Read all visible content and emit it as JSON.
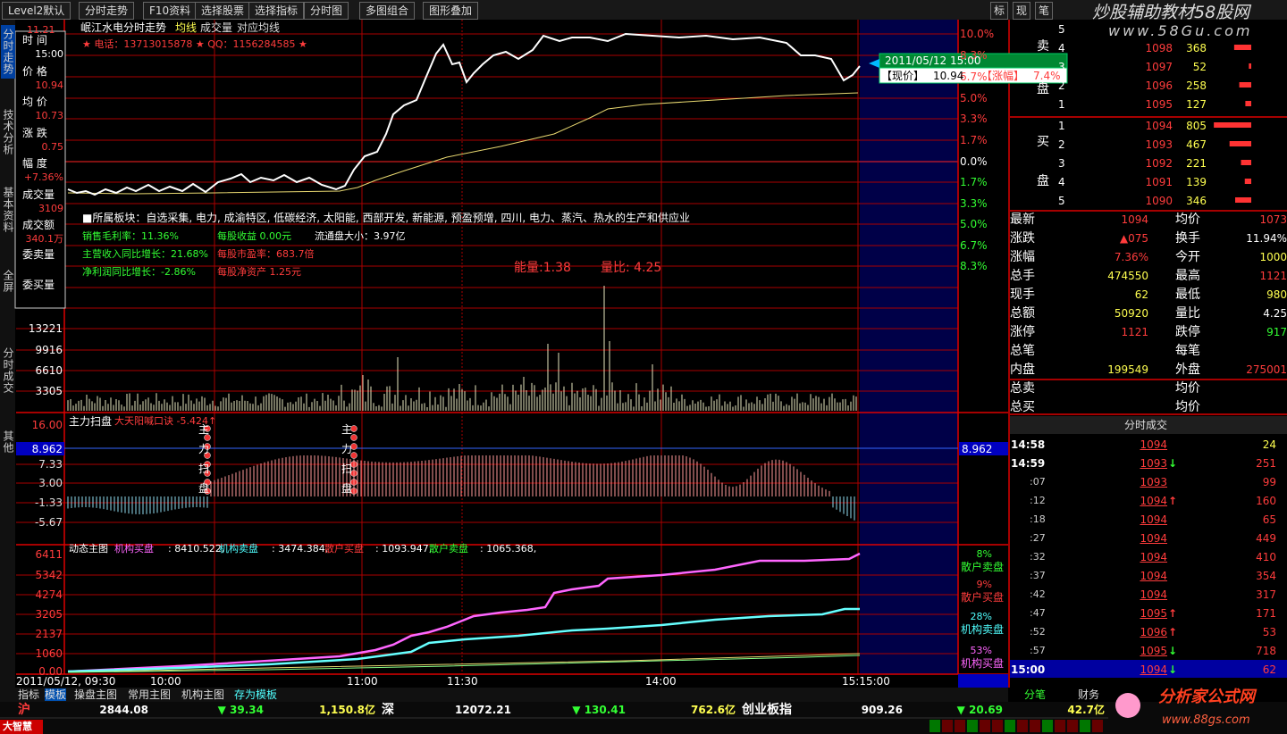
{
  "toolbar": {
    "tabs": [
      "Level2默认",
      "分时走势",
      "F10资料",
      "选择股票",
      "选择指标",
      "分时图",
      "多图组合",
      "图形叠加"
    ],
    "right": [
      "标",
      "现",
      "笔"
    ]
  },
  "logo_top": {
    "title": "炒股辅助教材58股网",
    "url": "www.58Gu.com"
  },
  "side_tabs": [
    "分时走势",
    "技术分析",
    "基本资料",
    "全屏",
    "分时成交",
    "其他"
  ],
  "info_box": [
    {
      "label": "时 间",
      "value": "15:00"
    },
    {
      "label": "价 格",
      "value": "10.94"
    },
    {
      "label": "均 价",
      "value": "10.73"
    },
    {
      "label": "涨 跌",
      "value": "0.75"
    },
    {
      "label": "幅 度",
      "value": "+7.36%"
    },
    {
      "label": "成交量",
      "value": "3109"
    },
    {
      "label": "成交额",
      "value": "340.1万"
    },
    {
      "label": "委卖量"
    },
    {
      "label": "委买量"
    }
  ],
  "chart": {
    "title": "岷江水电分时走势",
    "menu": [
      "均线",
      "成交量",
      "对应均线"
    ],
    "contact": "★ 电话：13713015878 ★ QQ：1156284585 ★",
    "top_price": "11.21",
    "pct_ticks": [
      "10.0%",
      "8.3%",
      "6.7%",
      "5.0%",
      "3.3%",
      "1.7%",
      "0.0%",
      "1.7%",
      "3.3%",
      "5.0%",
      "6.7%",
      "8.3%"
    ],
    "tooltip": {
      "date": "2011/05/12 15:00",
      "price_label": "【现价】",
      "price": "10.94",
      "change_label": "【涨幅】",
      "change": "7.4%"
    }
  },
  "fundamentals": {
    "sector": "■所属板块：自选采集, 电力, 成渝特区, 低碳经济, 太阳能, 西部开发, 新能源, 预盈预增, 四川, 电力、蒸汽、热水的生产和供应业",
    "items": [
      "销售毛利率：11.36%",
      "每股收益 0.00元",
      "流通盘大小：3.97亿",
      "主营收入同比增长：21.68%",
      "每股市盈率：683.7倍",
      "净利润同比增长：-2.86%",
      "每股净资产 1.25元"
    ],
    "energy": "能量:1.38",
    "volume_ratio": "量比: 4.25"
  },
  "volume_ticks": [
    "13221",
    "9916",
    "6610",
    "3305"
  ],
  "indicator": {
    "name": "主力扫盘",
    "formula": "大天阳喊口诀 -5.424↑",
    "ticks": [
      "16.00",
      "7.33",
      "3.00",
      "-1.33",
      "-5.67"
    ],
    "current": "8.962",
    "marker": [
      "主",
      "力",
      "扫",
      "盘"
    ]
  },
  "dynamic": {
    "name": "动态主图",
    "items": [
      {
        "name": "机构买盘",
        "value": ": 8410.522,"
      },
      {
        "name": "机构卖盘",
        "value": ": 3474.384,"
      },
      {
        "name": "散户买盘",
        "value": ": 1093.947,"
      },
      {
        "name": "散户卖盘",
        "value": ": 1065.368,"
      }
    ],
    "ticks": [
      "6411",
      "5342",
      "4274",
      "3205",
      "2137",
      "1060",
      "0.00"
    ],
    "shares": [
      {
        "pct": "8%",
        "name": "散户卖盘"
      },
      {
        "pct": "9%",
        "name": "散户买盘"
      },
      {
        "pct": "28%",
        "name": "机构卖盘"
      },
      {
        "pct": "53%",
        "name": "机构买盘"
      }
    ]
  },
  "x_axis": [
    "2011/05/12, 09:30",
    "10:00",
    "11:00",
    "11:30",
    "14:00",
    "15:15:00"
  ],
  "bottom_tabs": [
    "指标",
    "模板",
    "操盘主图",
    "常用主图",
    "机构主图",
    "存为模板"
  ],
  "right_tabs": [
    "分笔",
    "财务"
  ],
  "order_book": {
    "sell_label": [
      "卖",
      "盘"
    ],
    "buy_label": [
      "买",
      "盘"
    ],
    "sell": [
      {
        "level": "5"
      },
      {
        "level": "4",
        "price": "1098",
        "volume": "368"
      },
      {
        "level": "3",
        "price": "1097",
        "volume": "52"
      },
      {
        "level": "2",
        "price": "1096",
        "volume": "258"
      },
      {
        "level": "1",
        "price": "1095",
        "volume": "127"
      }
    ],
    "buy": [
      {
        "level": "1",
        "price": "1094",
        "volume": "805"
      },
      {
        "level": "2",
        "price": "1093",
        "volume": "467"
      },
      {
        "level": "3",
        "price": "1092",
        "volume": "221"
      },
      {
        "level": "4",
        "price": "1091",
        "volume": "139"
      },
      {
        "level": "5",
        "price": "1090",
        "volume": "346"
      }
    ]
  },
  "stats": [
    {
      "l1": "最新",
      "v1": "1094",
      "l2": "均价",
      "v2": "1073"
    },
    {
      "l1": "涨跌",
      "v1": "▲075",
      "l2": "换手",
      "v2": "11.94%"
    },
    {
      "l1": "涨幅",
      "v1": "7.36%",
      "l2": "今开",
      "v2": "1000"
    },
    {
      "l1": "总手",
      "v1": "474550",
      "l2": "最高",
      "v2": "1121"
    },
    {
      "l1": "现手",
      "v1": "62",
      "l2": "最低",
      "v2": "980"
    },
    {
      "l1": "总额",
      "v1": "50920",
      "l2": "量比",
      "v2": "4.25"
    },
    {
      "l1": "涨停",
      "v1": "1121",
      "l2": "跌停",
      "v2": "917"
    },
    {
      "l1": "总笔",
      "l2": "每笔"
    },
    {
      "l1": "内盘",
      "v1": "199549",
      "l2": "外盘",
      "v2": "275001"
    },
    {
      "l1": "总卖",
      "l2": "均价"
    },
    {
      "l1": "总买",
      "l2": "均价"
    }
  ],
  "trades": {
    "title": "分时成交",
    "rows": [
      {
        "time": "14:58",
        "price": "1094",
        "volume": "24"
      },
      {
        "time": "14:59",
        "price": "1093",
        "arrow": "↓",
        "volume": "251"
      },
      {
        "time": ":07",
        "price": "1093",
        "volume": "99"
      },
      {
        "time": ":12",
        "price": "1094",
        "arrow": "↑",
        "volume": "160"
      },
      {
        "time": ":18",
        "price": "1094",
        "volume": "65"
      },
      {
        "time": ":27",
        "price": "1094",
        "volume": "449"
      },
      {
        "time": ":32",
        "price": "1094",
        "volume": "410"
      },
      {
        "time": ":37",
        "price": "1094",
        "volume": "354"
      },
      {
        "time": ":42",
        "price": "1094",
        "volume": "317"
      },
      {
        "time": ":47",
        "price": "1095",
        "arrow": "↑",
        "volume": "171"
      },
      {
        "time": ":52",
        "price": "1096",
        "arrow": "↑",
        "volume": "53"
      },
      {
        "time": ":57",
        "price": "1095",
        "arrow": "↓",
        "volume": "718"
      },
      {
        "time": "15:00",
        "price": "1094",
        "arrow": "↓",
        "volume": "62"
      }
    ]
  },
  "status": {
    "sh": "沪",
    "sh_index": "2844.08",
    "sh_change": "▼ 39.34",
    "sh_amount": "1,150.8亿",
    "sz": "深",
    "sz_index": "12072.21",
    "sz_change": "▼ 130.41",
    "sz_amount": "762.6亿",
    "gem": "创业板指",
    "gem_index": "909.26",
    "gem_change": "▼ 20.69",
    "gem_amount": "42.7亿",
    "brand": "大智慧"
  },
  "logo_bottom": {
    "title": "分析家公式网",
    "url": "www.88gs.com"
  }
}
